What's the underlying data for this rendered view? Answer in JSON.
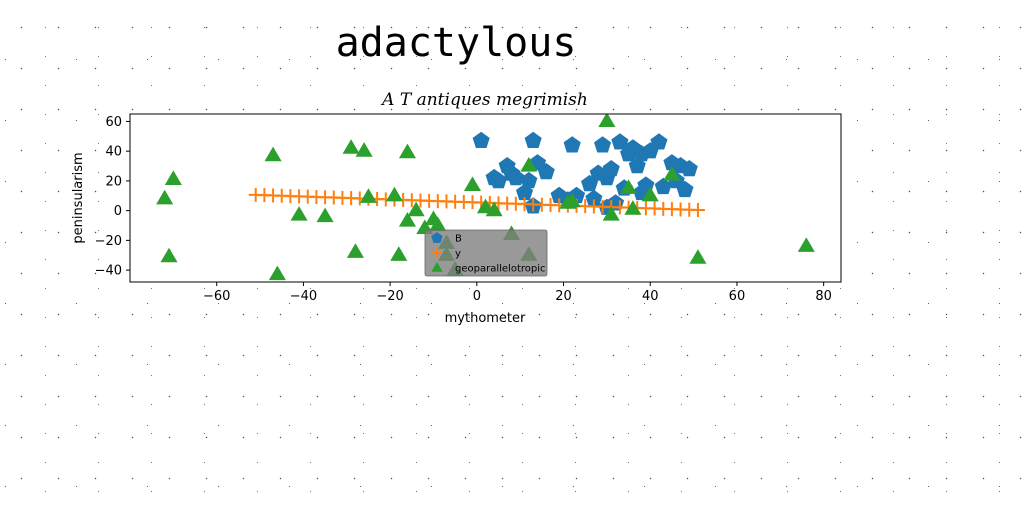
{
  "figure_title": "adactylous",
  "chart_data": {
    "type": "scatter",
    "title": "A T antiques megrimish",
    "xlabel": "mythometer",
    "ylabel": "peninsularism",
    "xlim": [
      -80,
      84
    ],
    "ylim": [
      -48,
      65
    ],
    "xticks": [
      -60,
      -40,
      -20,
      0,
      20,
      40,
      60,
      80
    ],
    "yticks": [
      -40,
      -20,
      0,
      20,
      40,
      60
    ],
    "xtick_labels": [
      "−60",
      "−40",
      "−20",
      "0",
      "20",
      "40",
      "60",
      "80"
    ],
    "ytick_labels": [
      "−40",
      "−20",
      "0",
      "20",
      "40",
      "60"
    ],
    "grid": false,
    "legend_position": "lower-center",
    "series": [
      {
        "name": "B",
        "marker": "pentagon",
        "color": "#1f77b4",
        "x": [
          1,
          4,
          5,
          7,
          9,
          11,
          12,
          13,
          13,
          14,
          16,
          19,
          21,
          22,
          23,
          26,
          27,
          28,
          29,
          30,
          31,
          32,
          33,
          34,
          35,
          36,
          37,
          38,
          38,
          39,
          40,
          42,
          43,
          45,
          46,
          47,
          48,
          49,
          8,
          30
        ],
        "y": [
          47,
          22,
          20,
          30,
          22,
          12,
          20,
          3,
          47,
          32,
          26,
          10,
          7,
          44,
          10,
          18,
          8,
          25,
          44,
          22,
          28,
          5,
          46,
          15,
          38,
          42,
          30,
          12,
          38,
          17,
          40,
          46,
          16,
          32,
          20,
          30,
          14,
          28,
          25,
          2
        ]
      },
      {
        "name": "y",
        "marker": "plus",
        "color": "#ff7f0e",
        "x": [
          -51,
          -49,
          -47,
          -45,
          -43,
          -41,
          -39,
          -37,
          -35,
          -33,
          -31,
          -29,
          -27,
          -25,
          -23,
          -21,
          -19,
          -17,
          -15,
          -13,
          -11,
          -9,
          -7,
          -5,
          -3,
          -1,
          1,
          3,
          5,
          7,
          9,
          11,
          13,
          15,
          17,
          19,
          21,
          23,
          25,
          27,
          29,
          31,
          33,
          35,
          37,
          39,
          41,
          43,
          45,
          47,
          49,
          51
        ],
        "y": [
          10.6,
          10.4,
          10.2,
          10.0,
          9.8,
          9.6,
          9.4,
          9.2,
          9.0,
          8.8,
          8.6,
          8.4,
          8.2,
          8.0,
          7.8,
          7.6,
          7.4,
          7.2,
          7.0,
          6.8,
          6.6,
          6.4,
          6.2,
          6.0,
          5.8,
          5.6,
          5.4,
          5.2,
          5.0,
          4.8,
          4.6,
          4.4,
          4.2,
          4.0,
          3.8,
          3.6,
          3.4,
          3.2,
          3.0,
          2.8,
          2.6,
          2.4,
          2.2,
          2.0,
          1.8,
          1.6,
          1.4,
          1.2,
          1.0,
          0.8,
          0.6,
          0.4
        ]
      },
      {
        "name": "geoparallelotropic",
        "marker": "triangle",
        "color": "#2ca02c",
        "x": [
          -72,
          -70,
          -71,
          -47,
          -46,
          -41,
          -35,
          -29,
          -28,
          -26,
          -25,
          -19,
          -18,
          -16,
          -16,
          -14,
          -12,
          -10,
          -9,
          -7,
          -7,
          -1,
          2,
          4,
          8,
          12,
          12,
          21,
          22,
          30,
          31,
          35,
          36,
          40,
          45,
          51,
          76,
          -5
        ],
        "y": [
          8,
          21,
          -31,
          37,
          -43,
          -3,
          -4,
          42,
          -28,
          40,
          9,
          10,
          -30,
          39,
          -7,
          0,
          -12,
          -6,
          -10,
          -30,
          -22,
          17,
          2,
          0,
          -16,
          30,
          -30,
          5,
          6,
          60,
          -3,
          15,
          1,
          10,
          24,
          -32,
          -24,
          -40
        ]
      }
    ]
  }
}
